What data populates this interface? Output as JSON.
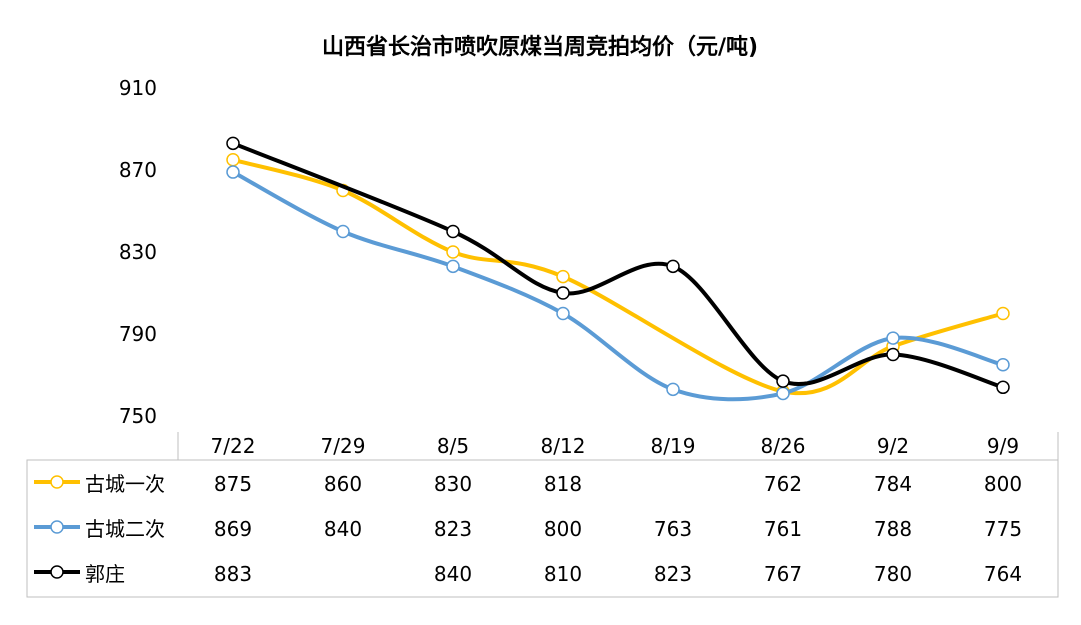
{
  "chart_data": {
    "type": "line",
    "title": "山西省长治市喷吹原煤当周竞拍均价（元/吨)",
    "categories": [
      "7/22",
      "7/29",
      "8/5",
      "8/12",
      "8/19",
      "8/26",
      "9/2",
      "9/9"
    ],
    "ylim": [
      750,
      910
    ],
    "yticks": [
      "910",
      "870",
      "830",
      "790",
      "750"
    ],
    "series": [
      {
        "name": "古城一次",
        "color": "#FFC000",
        "values": [
          875,
          860,
          830,
          818,
          null,
          762,
          784,
          800
        ],
        "labels": [
          "875",
          "860",
          "830",
          "818",
          "",
          "762",
          "784",
          "800"
        ]
      },
      {
        "name": "古城二次",
        "color": "#5B9BD5",
        "values": [
          869,
          840,
          823,
          800,
          763,
          761,
          788,
          775
        ],
        "labels": [
          "869",
          "840",
          "823",
          "800",
          "763",
          "761",
          "788",
          "775"
        ]
      },
      {
        "name": "郭庄",
        "color": "#000000",
        "values": [
          883,
          null,
          840,
          810,
          823,
          767,
          780,
          764
        ],
        "labels": [
          "883",
          "",
          "840",
          "810",
          "823",
          "767",
          "780",
          "764"
        ]
      }
    ],
    "grid": false,
    "legend": "data-table"
  }
}
